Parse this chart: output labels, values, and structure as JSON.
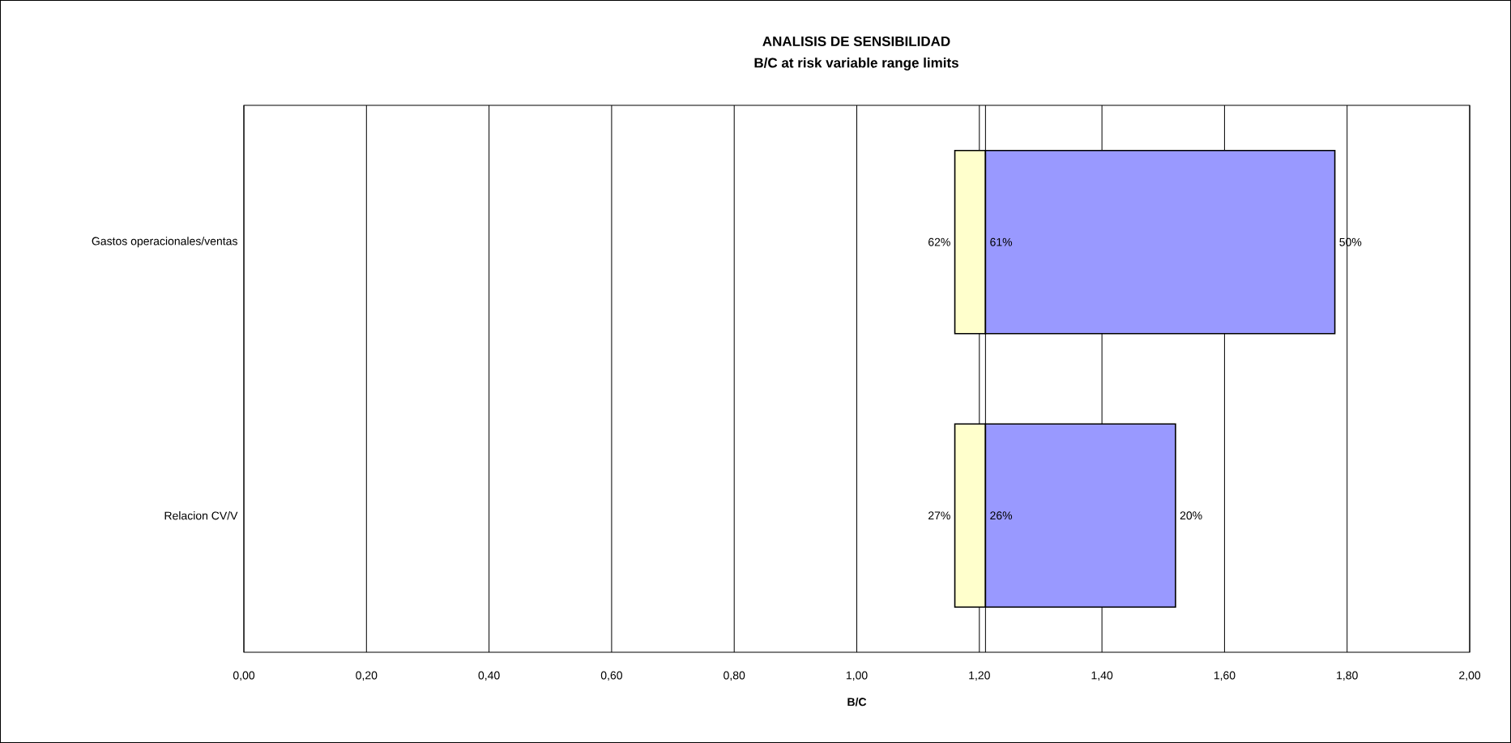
{
  "chart_data": {
    "type": "bar",
    "orientation": "horizontal",
    "title": "ANALISIS DE SENSIBILIDAD",
    "subtitle": "B/C at risk variable range limits",
    "xlabel": "B/C",
    "categories": [
      "Gastos operacionales/ventas",
      "Relacion CV/V"
    ],
    "series": [
      {
        "color": "#ffffcc",
        "base": [
          1.16,
          1.16
        ],
        "values": [
          0.05,
          0.05
        ]
      },
      {
        "color": "#9999ff",
        "base": [
          1.21,
          1.21
        ],
        "values": [
          0.57,
          0.31
        ]
      }
    ],
    "xlim": [
      0,
      2
    ],
    "xticks": [
      {
        "value": 0,
        "label": "0,00"
      },
      {
        "value": 0.2,
        "label": "0,20"
      },
      {
        "value": 0.4,
        "label": "0,40"
      },
      {
        "value": 0.6,
        "label": "0,60"
      },
      {
        "value": 0.8,
        "label": "0,80"
      },
      {
        "value": 1.0,
        "label": "1,00"
      },
      {
        "value": 1.2,
        "label": "1,20"
      },
      {
        "value": 1.4,
        "label": "1,40"
      },
      {
        "value": 1.6,
        "label": "1,60"
      },
      {
        "value": 1.8,
        "label": "1,80"
      },
      {
        "value": 2.0,
        "label": "2,00"
      }
    ],
    "grid": "x",
    "ref_lines": [
      {
        "axis": "x",
        "value": 1.21,
        "color": "#000000"
      }
    ],
    "annotations": [
      {
        "text": "62%",
        "x": 1.16,
        "y": "Gastos operacionales/ventas"
      },
      {
        "text": "61%",
        "x": 1.21,
        "y": "Gastos operacionales/ventas"
      },
      {
        "text": "50%",
        "x": 1.78,
        "y": "Gastos operacionales/ventas"
      },
      {
        "text": "27%",
        "x": 1.16,
        "y": "Relacion CV/V"
      },
      {
        "text": "26%",
        "x": 1.21,
        "y": "Relacion CV/V"
      },
      {
        "text": "20%",
        "x": 1.52,
        "y": "Relacion CV/V"
      }
    ]
  }
}
